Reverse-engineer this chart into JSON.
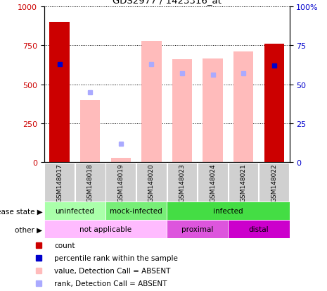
{
  "title": "GDS2977 / 1423316_at",
  "samples": [
    "GSM148017",
    "GSM148018",
    "GSM148019",
    "GSM148020",
    "GSM148023",
    "GSM148024",
    "GSM148021",
    "GSM148022"
  ],
  "count_values": [
    900,
    0,
    0,
    0,
    0,
    0,
    0,
    760
  ],
  "rank_values": [
    63,
    0,
    0,
    0,
    0,
    0,
    0,
    62
  ],
  "absent_value_values": [
    0,
    400,
    30,
    780,
    660,
    665,
    710,
    0
  ],
  "absent_rank_values": [
    0,
    45,
    12,
    63,
    57,
    56,
    57,
    0
  ],
  "ylim_left": [
    0,
    1000
  ],
  "ylim_right": [
    0,
    100
  ],
  "yticks_left": [
    0,
    250,
    500,
    750,
    1000
  ],
  "yticks_right": [
    0,
    25,
    50,
    75,
    100
  ],
  "color_count": "#cc0000",
  "color_rank": "#0000cc",
  "color_absent_value": "#ffbbbb",
  "color_absent_rank": "#aaaaff",
  "bar_width": 0.65,
  "background_color": "#ffffff",
  "ds_groups": [
    {
      "label": "uninfected",
      "start": 0,
      "end": 1,
      "color": "#aaffaa"
    },
    {
      "label": "mock-infected",
      "start": 2,
      "end": 3,
      "color": "#77ee77"
    },
    {
      "label": "infected",
      "start": 4,
      "end": 7,
      "color": "#44dd44"
    }
  ],
  "other_groups": [
    {
      "label": "not applicable",
      "start": 0,
      "end": 3,
      "color": "#ffbbff"
    },
    {
      "label": "proximal",
      "start": 4,
      "end": 5,
      "color": "#dd55dd"
    },
    {
      "label": "distal",
      "start": 6,
      "end": 7,
      "color": "#cc00cc"
    }
  ],
  "legend_items": [
    {
      "color": "#cc0000",
      "label": "count",
      "marker": "s"
    },
    {
      "color": "#0000cc",
      "label": "percentile rank within the sample",
      "marker": "s"
    },
    {
      "color": "#ffbbbb",
      "label": "value, Detection Call = ABSENT",
      "marker": "s"
    },
    {
      "color": "#aaaaff",
      "label": "rank, Detection Call = ABSENT",
      "marker": "s"
    }
  ]
}
